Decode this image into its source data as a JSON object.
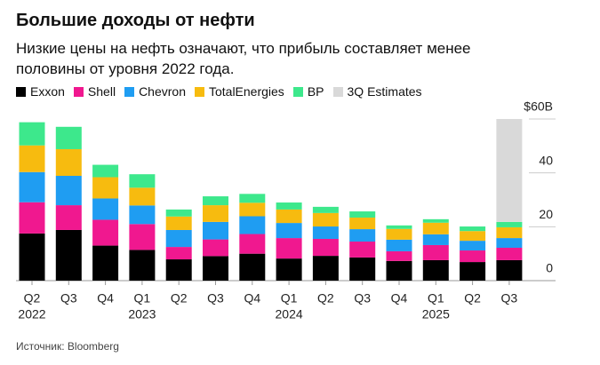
{
  "chart_data": {
    "type": "stacked_bar",
    "title": "Большие доходы от нефти",
    "subtitle": "Низкие цены на нефть означают, что прибыль составляет менее половины от уровня 2022 года.",
    "source": "Источник: Bloomberg",
    "categories": [
      "Q2",
      "Q3",
      "Q4",
      "Q1",
      "Q2",
      "Q3",
      "Q4",
      "Q1",
      "Q2",
      "Q3",
      "Q4",
      "Q1",
      "Q2",
      "Q3"
    ],
    "category_years": [
      "2022",
      null,
      null,
      "2023",
      null,
      null,
      null,
      "2024",
      null,
      null,
      null,
      "2025",
      null,
      null
    ],
    "series": [
      {
        "name": "Exxon",
        "color": "#000000",
        "values": [
          17.5,
          18.8,
          13,
          11.4,
          7.9,
          9.1,
          10,
          8.2,
          9.2,
          8.6,
          7.3,
          7.6,
          6.9,
          7.6
        ]
      },
      {
        "name": "Shell",
        "color": "#f0188f",
        "values": [
          11.6,
          9.2,
          9.6,
          9.6,
          4.6,
          6.2,
          7.3,
          7.6,
          6.3,
          5.9,
          3.6,
          5.6,
          4.3,
          4.6
        ]
      },
      {
        "name": "Chevron",
        "color": "#1f9df2",
        "values": [
          11.2,
          10.9,
          7.9,
          6.9,
          6.3,
          6.5,
          6.6,
          5.6,
          4.6,
          4.6,
          4.3,
          4,
          3.6,
          3.6
        ]
      },
      {
        "name": "TotalEnergies",
        "color": "#f7bb0f",
        "values": [
          9.9,
          9.9,
          7.9,
          6.6,
          5,
          6.2,
          5,
          5,
          5,
          4.3,
          4,
          4.3,
          3.6,
          4
        ]
      },
      {
        "name": "BP",
        "color": "#3de88c",
        "values": [
          8.6,
          8.3,
          4.6,
          5,
          2.6,
          3.3,
          3.3,
          2.6,
          2.3,
          2.3,
          1.3,
          1.3,
          1.7,
          2
        ]
      },
      {
        "name": "3Q Estimates",
        "color": "#d9d9d9",
        "values": [
          null,
          null,
          null,
          null,
          null,
          null,
          null,
          null,
          null,
          null,
          null,
          null,
          null,
          38.2
        ]
      }
    ],
    "ylim": [
      0,
      60
    ],
    "yticks": [
      0,
      20,
      40,
      {
        "value": 60,
        "label": "$60B"
      }
    ]
  }
}
